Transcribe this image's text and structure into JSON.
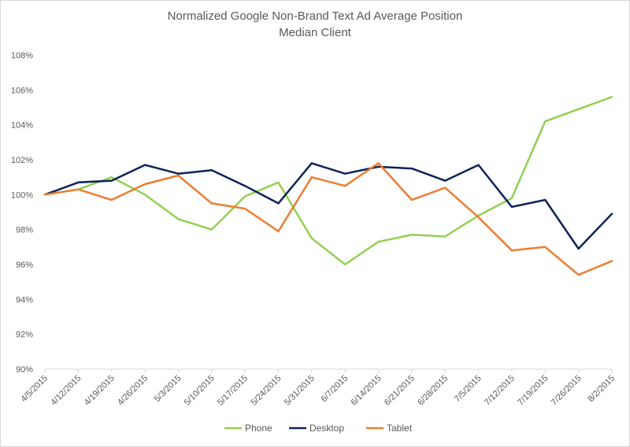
{
  "chart_data": {
    "type": "line",
    "title": "Normalized Google Non-Brand Text Ad Average Position",
    "subtitle": "Median Client",
    "xlabel": "",
    "ylabel": "",
    "ylim": [
      90,
      108
    ],
    "y_ticks": [
      "90%",
      "92%",
      "94%",
      "96%",
      "98%",
      "100%",
      "102%",
      "104%",
      "106%",
      "108%"
    ],
    "x": [
      "4/5/2015",
      "4/12/2015",
      "4/19/2015",
      "4/26/2015",
      "5/3/2015",
      "5/10/2015",
      "5/17/2015",
      "5/24/2015",
      "5/31/2015",
      "6/7/2015",
      "6/14/2015",
      "6/21/2015",
      "6/28/2015",
      "7/5/2015",
      "7/12/2015",
      "7/19/2015",
      "7/26/2015",
      "8/2/2015"
    ],
    "grid": false,
    "legend": "bottom",
    "series": [
      {
        "name": "Phone",
        "color": "#92d050",
        "values": [
          100.0,
          100.3,
          101.0,
          100.0,
          98.6,
          98.0,
          99.9,
          100.7,
          97.5,
          96.0,
          97.3,
          97.7,
          97.6,
          98.8,
          99.8,
          104.2,
          104.9,
          105.6
        ]
      },
      {
        "name": "Desktop",
        "color": "#0d2358",
        "values": [
          100.0,
          100.7,
          100.8,
          101.7,
          101.2,
          101.4,
          100.5,
          99.5,
          101.8,
          101.2,
          101.6,
          101.5,
          100.8,
          101.7,
          99.3,
          99.7,
          96.9,
          98.9
        ]
      },
      {
        "name": "Tablet",
        "color": "#ed7d31",
        "values": [
          100.0,
          100.3,
          99.7,
          100.6,
          101.1,
          99.5,
          99.2,
          97.9,
          101.0,
          100.5,
          101.8,
          99.7,
          100.4,
          98.7,
          96.8,
          97.0,
          95.4,
          96.2
        ]
      }
    ]
  }
}
